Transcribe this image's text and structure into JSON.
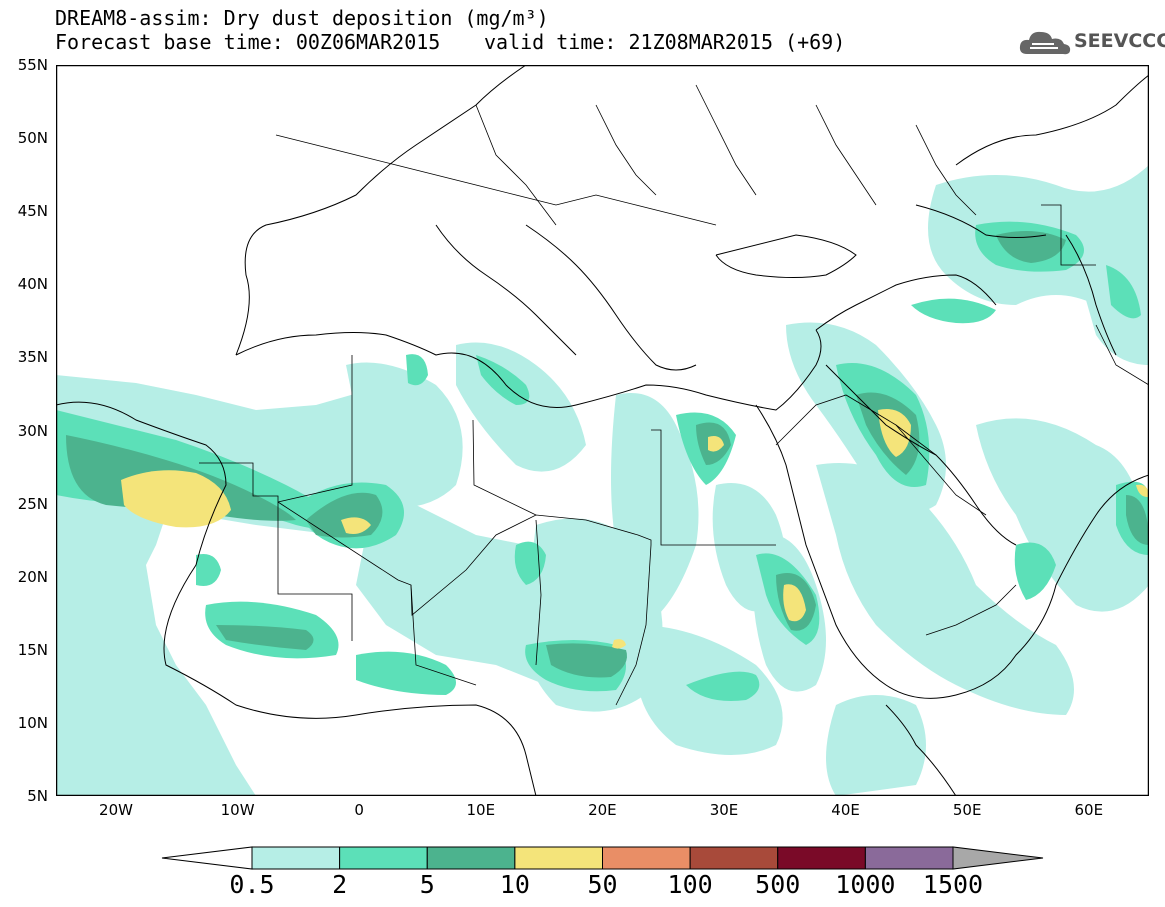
{
  "header": {
    "title": "DREAM8-assim: Dry dust deposition (mg/m³)",
    "base_time": "Forecast base time: 00Z06MAR2015",
    "valid_time": "valid time: 21Z08MAR2015 (+69)",
    "logo_text": "SEEVCCC",
    "logo_icon": "cloud-icon"
  },
  "axes": {
    "lat_labels": [
      "55N",
      "50N",
      "45N",
      "40N",
      "35N",
      "30N",
      "25N",
      "20N",
      "15N",
      "10N",
      "5N"
    ],
    "lon_labels": [
      "20W",
      "10W",
      "0",
      "10E",
      "20E",
      "30E",
      "40E",
      "50E",
      "60E"
    ]
  },
  "legend": {
    "levels": [
      "0.5",
      "2",
      "5",
      "10",
      "50",
      "100",
      "500",
      "1000",
      "1500"
    ],
    "colors": [
      "#ffffff",
      "#b6eee6",
      "#5ce0b8",
      "#4cb38e",
      "#f4e47a",
      "#e98e66",
      "#a84a3a",
      "#7a0a28",
      "#8a6a9a",
      "#a8a8a8"
    ]
  },
  "colors": {
    "map_border": "#000000",
    "coast": "#000000"
  }
}
